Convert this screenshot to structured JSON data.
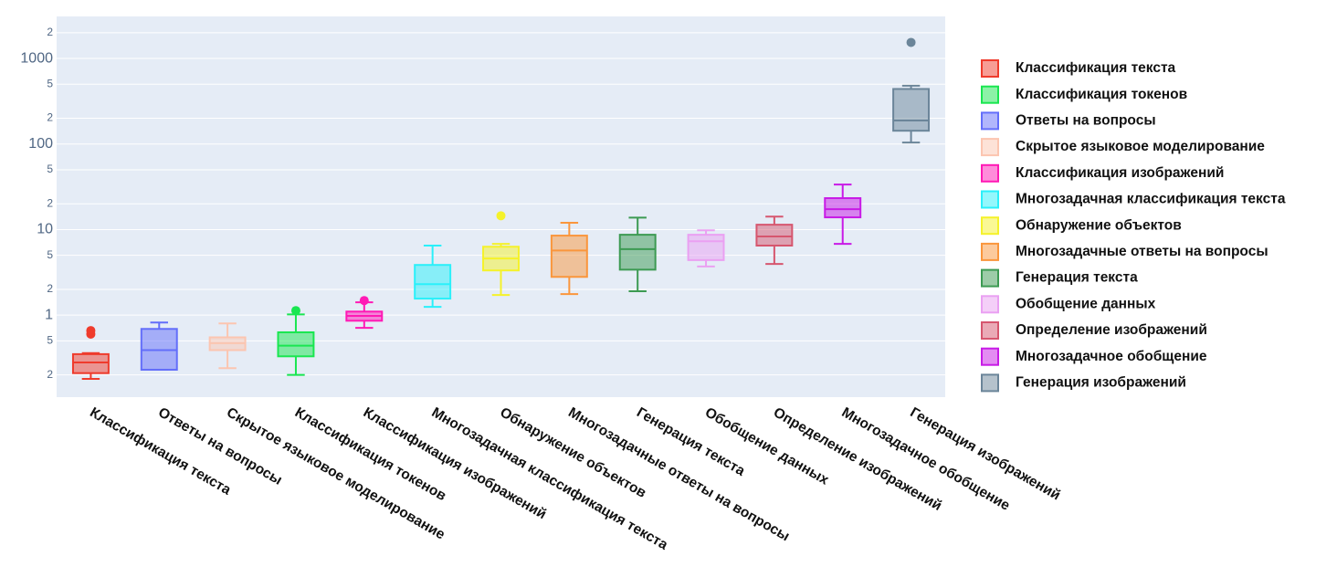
{
  "chart_data": {
    "type": "box",
    "log_y": true,
    "grid": true,
    "legend": "right",
    "categories": [
      "Классификация текста",
      "Ответы на вопросы",
      "Скрытое языковое моделирование",
      "Классификация токенов",
      "Классификация изображений",
      "Многозадачная классификация текста",
      "Обнаружение объектов",
      "Многозадачные ответы на вопросы",
      "Генерация текста",
      "Обобщение данных",
      "Определение изображений",
      "Многозадачное обобщение",
      "Генерация изображений"
    ],
    "ylim": [
      0.11,
      3100
    ],
    "yticks": [
      {
        "value": 2000,
        "label": "2"
      },
      1000,
      {
        "value": 500,
        "label": "5"
      },
      {
        "value": 200,
        "label": "2"
      },
      100,
      {
        "value": 50,
        "label": "5"
      },
      {
        "value": 20,
        "label": "2"
      },
      10,
      5,
      2,
      1,
      {
        "value": 0.5,
        "label": "5"
      },
      {
        "value": 0.2,
        "label": "2"
      }
    ],
    "series": [
      {
        "name": "Классификация текста",
        "color": "#ef3b2c",
        "min": 0.18,
        "q1": 0.21,
        "median": 0.28,
        "q3": 0.35,
        "max": 0.36,
        "outliers": [
          0.6,
          0.66
        ]
      },
      {
        "name": "Классификация токенов",
        "color": "#19e650",
        "min": 0.2,
        "q1": 0.33,
        "median": 0.44,
        "q3": 0.63,
        "max": 1.02,
        "outliers": [
          1.13
        ]
      },
      {
        "name": "Ответы на вопросы",
        "color": "#636efa",
        "min": 0.23,
        "q1": 0.23,
        "median": 0.39,
        "q3": 0.69,
        "max": 0.82,
        "outliers": []
      },
      {
        "name": "Скрытое языковое моделирование",
        "color": "#fcc5b0",
        "min": 0.24,
        "q1": 0.39,
        "median": 0.47,
        "q3": 0.55,
        "max": 0.8,
        "outliers": []
      },
      {
        "name": "Классификация изображений",
        "color": "#ff1ab5",
        "min": 0.71,
        "q1": 0.86,
        "median": 0.98,
        "q3": 1.1,
        "max": 1.41,
        "outliers": [
          1.48
        ]
      },
      {
        "name": "Многозадачная классификация текста",
        "color": "#2af0fa",
        "min": 1.25,
        "q1": 1.56,
        "median": 2.3,
        "q3": 3.86,
        "max": 6.5,
        "outliers": []
      },
      {
        "name": "Обнаружение объектов",
        "color": "#f5f22a",
        "min": 1.72,
        "q1": 3.33,
        "median": 4.6,
        "q3": 6.3,
        "max": 6.8,
        "outliers": [
          14.5
        ]
      },
      {
        "name": "Многозадачные ответы на вопросы",
        "color": "#fa963c",
        "min": 1.76,
        "q1": 2.8,
        "median": 5.7,
        "q3": 8.5,
        "max": 12,
        "outliers": []
      },
      {
        "name": "Генерация текста",
        "color": "#3c9a52",
        "min": 1.9,
        "q1": 3.4,
        "median": 5.9,
        "q3": 8.7,
        "max": 13.8,
        "outliers": []
      },
      {
        "name": "Обобщение данных",
        "color": "#eaa0f2",
        "min": 3.7,
        "q1": 4.4,
        "median": 7.3,
        "q3": 8.7,
        "max": 9.8,
        "outliers": []
      },
      {
        "name": "Определение изображений",
        "color": "#d6566e",
        "min": 3.96,
        "q1": 6.5,
        "median": 8.3,
        "q3": 11.4,
        "max": 14.2,
        "outliers": []
      },
      {
        "name": "Многозадачное обобщение",
        "color": "#c81ae6",
        "min": 6.8,
        "q1": 13.9,
        "median": 17.3,
        "q3": 23.3,
        "max": 33.6,
        "outliers": []
      },
      {
        "name": "Генерация изображений",
        "color": "#6b8599",
        "min": 104,
        "q1": 143,
        "median": 188,
        "q3": 440,
        "max": 480,
        "outliers": [
          1540
        ]
      }
    ]
  }
}
